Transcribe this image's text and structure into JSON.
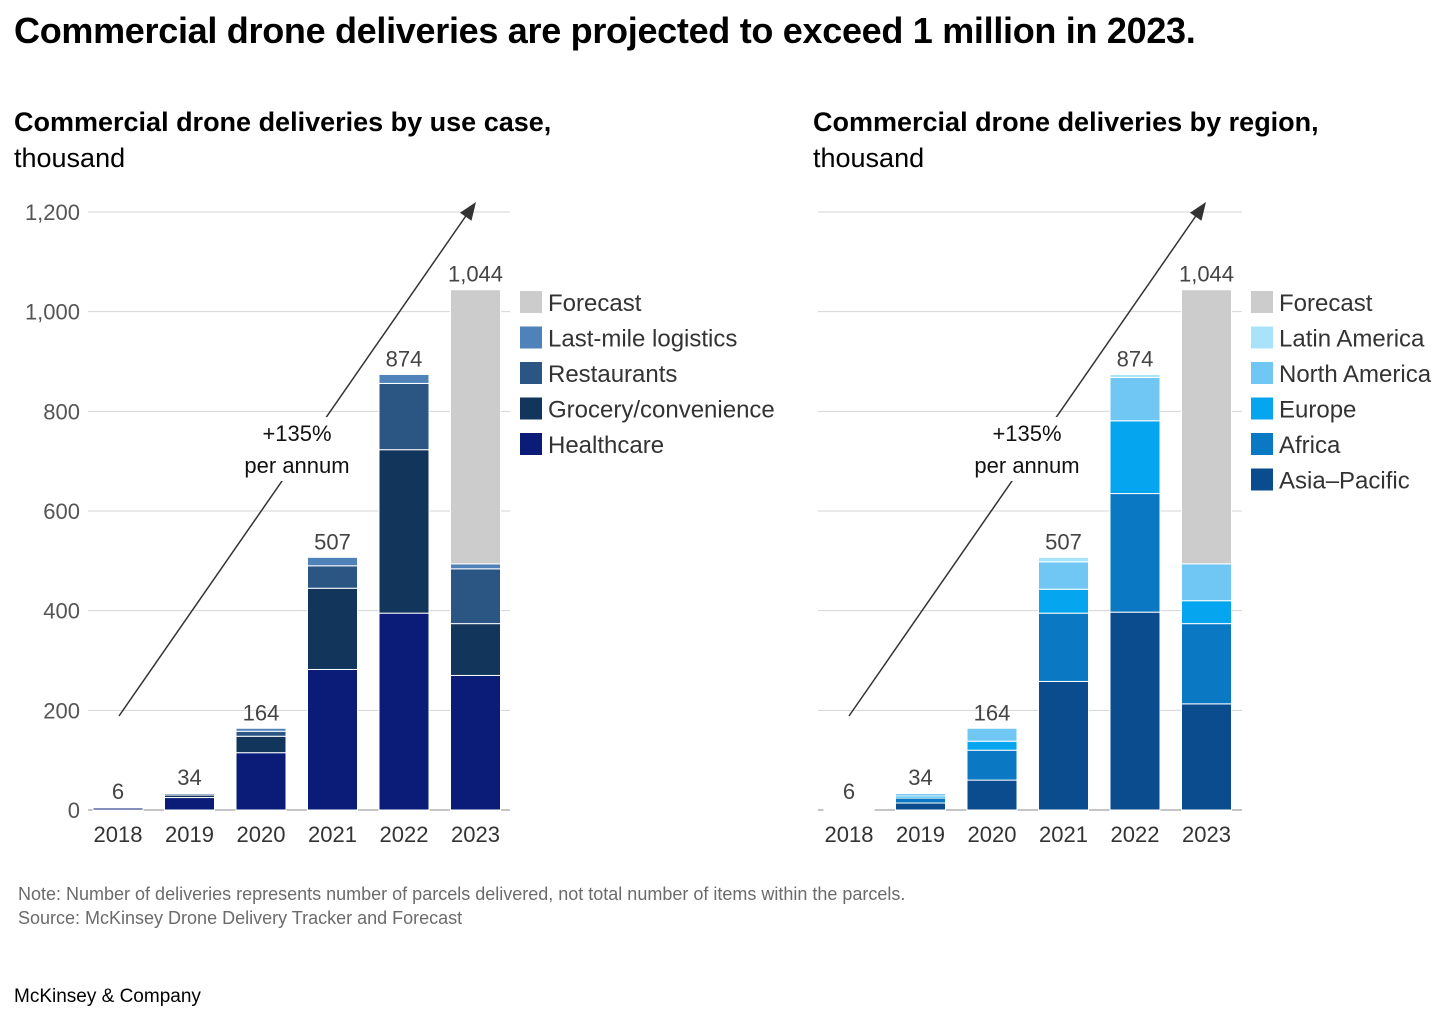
{
  "title": "Commercial drone deliveries are projected to exceed 1 million in 2023.",
  "note": "Note: Number of deliveries represents number of parcels delivered, not total number of items within the parcels.",
  "source": "Source: McKinsey Drone Delivery Tracker and Forecast",
  "brand": "McKinsey & Company",
  "chart_data": [
    {
      "type": "bar",
      "stacked": true,
      "title": "Commercial drone deliveries by use case,",
      "subtitle": "thousand",
      "categories": [
        "2018",
        "2019",
        "2020",
        "2021",
        "2022",
        "2023"
      ],
      "ylim": [
        0,
        1200
      ],
      "yticks": [
        0,
        200,
        400,
        600,
        800,
        1000,
        1200
      ],
      "ytick_labels": [
        "0",
        "200",
        "400",
        "600",
        "800",
        "1,000",
        "1,200"
      ],
      "grid": true,
      "legend_position": "right",
      "series": [
        {
          "name": "Healthcare",
          "color": "#0a1c78",
          "values": [
            4,
            25,
            115,
            282,
            395,
            270
          ]
        },
        {
          "name": "Grocery/convenience",
          "color": "#12355b",
          "values": [
            1,
            5,
            33,
            163,
            328,
            104
          ]
        },
        {
          "name": "Restaurants",
          "color": "#2b5582",
          "values": [
            1,
            3,
            10,
            45,
            133,
            110
          ]
        },
        {
          "name": "Last-mile logistics",
          "color": "#4f82b8",
          "values": [
            0,
            1,
            6,
            17,
            18,
            10
          ]
        },
        {
          "name": "Forecast",
          "color": "#cccccc",
          "values": [
            0,
            0,
            0,
            0,
            0,
            550
          ]
        }
      ],
      "totals": [
        "6",
        "34",
        "164",
        "507",
        "874",
        "1,044"
      ],
      "annotation": {
        "lines": [
          "+135%",
          "per annum"
        ]
      }
    },
    {
      "type": "bar",
      "stacked": true,
      "title": "Commercial drone deliveries by region,",
      "subtitle": "thousand",
      "categories": [
        "2018",
        "2019",
        "2020",
        "2021",
        "2022",
        "2023"
      ],
      "ylim": [
        0,
        1200
      ],
      "yticks": [
        0,
        200,
        400,
        600,
        800,
        1000,
        1200
      ],
      "grid": true,
      "legend_position": "right",
      "series": [
        {
          "name": "Asia–Pacific",
          "color": "#0b4c8f",
          "values": [
            2,
            14,
            60,
            258,
            397,
            213
          ]
        },
        {
          "name": "Africa",
          "color": "#0a78c2",
          "values": [
            2,
            10,
            60,
            137,
            238,
            161
          ]
        },
        {
          "name": "Europe",
          "color": "#05a6ef",
          "values": [
            1,
            4,
            18,
            48,
            146,
            46
          ]
        },
        {
          "name": "North America",
          "color": "#70c7f4",
          "values": [
            1,
            5,
            26,
            55,
            87,
            74
          ]
        },
        {
          "name": "Latin America",
          "color": "#a8e3fa",
          "values": [
            0,
            1,
            0,
            9,
            6,
            0
          ]
        },
        {
          "name": "Forecast",
          "color": "#cccccc",
          "values": [
            0,
            0,
            0,
            0,
            0,
            550
          ]
        }
      ],
      "totals": [
        "6",
        "34",
        "164",
        "507",
        "874",
        "1,044"
      ],
      "annotation": {
        "lines": [
          "+135%",
          "per annum"
        ]
      }
    }
  ]
}
